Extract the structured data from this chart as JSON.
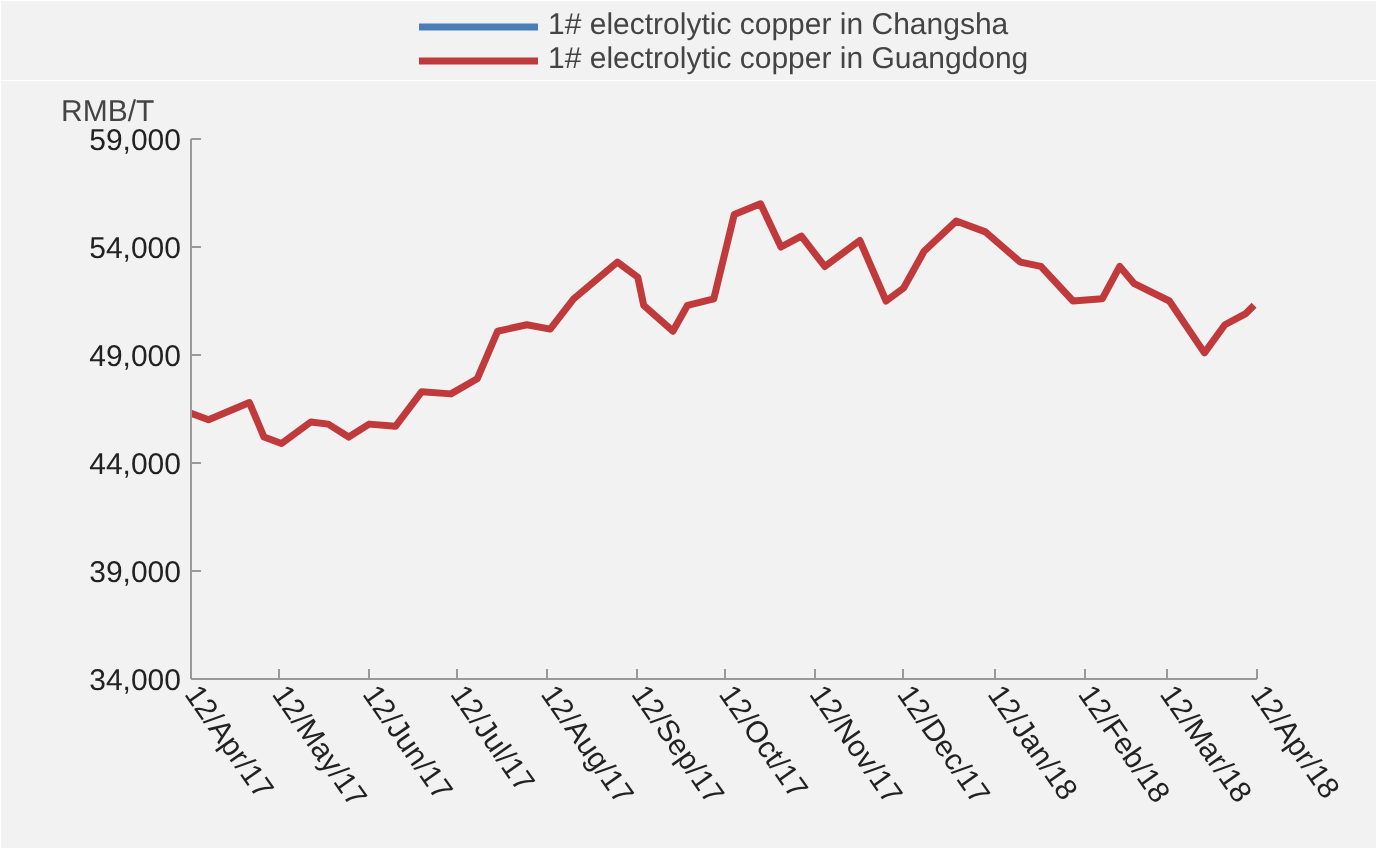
{
  "chart_data": {
    "type": "line",
    "ylabel": "RMB/T",
    "x": [
      "2017-04-12",
      "2017-04-18",
      "2017-05-02",
      "2017-05-07",
      "2017-05-13",
      "2017-05-23",
      "2017-05-29",
      "2017-06-05",
      "2017-06-12",
      "2017-06-21",
      "2017-06-30",
      "2017-07-10",
      "2017-07-19",
      "2017-07-26",
      "2017-08-05",
      "2017-08-13",
      "2017-08-21",
      "2017-09-05",
      "2017-09-12",
      "2017-09-14",
      "2017-09-24",
      "2017-09-29",
      "2017-10-08",
      "2017-10-15",
      "2017-10-24",
      "2017-10-31",
      "2017-11-07",
      "2017-11-15",
      "2017-11-27",
      "2017-12-06",
      "2017-12-12",
      "2017-12-19",
      "2017-12-30",
      "2018-01-09",
      "2018-01-21",
      "2018-01-28",
      "2018-02-08",
      "2018-02-18",
      "2018-02-24",
      "2018-03-01",
      "2018-03-13",
      "2018-03-25",
      "2018-04-01",
      "2018-04-08",
      "2018-04-11"
    ],
    "series": [
      {
        "name": "1# electrolytic copper in Changsha",
        "color": "#4a7ebb",
        "values": [
          null,
          null,
          null,
          null,
          null,
          null,
          null,
          null,
          null,
          null,
          null,
          null,
          null,
          null,
          null,
          null,
          null,
          null,
          null,
          null,
          null,
          null,
          null,
          null,
          null,
          null,
          null,
          null,
          null,
          null,
          null,
          null,
          null,
          null,
          null,
          null,
          null,
          null,
          null,
          null,
          null,
          null,
          null,
          null,
          null
        ]
      },
      {
        "name": "1# electrolytic copper in Guangdong",
        "color": "#c0393b",
        "values": [
          46300,
          46000,
          46800,
          45200,
          44900,
          45900,
          45800,
          45200,
          45800,
          45700,
          47300,
          47200,
          47900,
          50100,
          50400,
          50200,
          51600,
          53300,
          52600,
          51300,
          50100,
          51300,
          51600,
          55500,
          56000,
          54000,
          54500,
          53100,
          54300,
          51500,
          52100,
          53800,
          55200,
          54700,
          53300,
          53100,
          51500,
          51600,
          53100,
          52300,
          51500,
          49100,
          50400,
          50900,
          51300
        ]
      }
    ],
    "xlim": [
      "2017-04-12",
      "2018-04-12"
    ],
    "xticks": [
      {
        "value": "2017-04-12",
        "label": "12/Apr/17"
      },
      {
        "value": "2017-05-12",
        "label": "12/May/17"
      },
      {
        "value": "2017-06-12",
        "label": "12/Jun/17"
      },
      {
        "value": "2017-07-12",
        "label": "12/Jul/17"
      },
      {
        "value": "2017-08-12",
        "label": "12/Aug/17"
      },
      {
        "value": "2017-09-12",
        "label": "12/Sep/17"
      },
      {
        "value": "2017-10-12",
        "label": "12/Oct/17"
      },
      {
        "value": "2017-11-12",
        "label": "12/Nov/17"
      },
      {
        "value": "2017-12-12",
        "label": "12/Dec/17"
      },
      {
        "value": "2018-01-12",
        "label": "12/Jan/18"
      },
      {
        "value": "2018-02-12",
        "label": "12/Feb/18"
      },
      {
        "value": "2018-03-12",
        "label": "12/Mar/18"
      },
      {
        "value": "2018-04-12",
        "label": "12/Apr/18"
      }
    ],
    "ylim": [
      34000,
      59000
    ],
    "yticks": [
      {
        "value": 34000,
        "label": "34,000"
      },
      {
        "value": 39000,
        "label": "39,000"
      },
      {
        "value": 44000,
        "label": "44,000"
      },
      {
        "value": 49000,
        "label": "49,000"
      },
      {
        "value": 54000,
        "label": "54,000"
      },
      {
        "value": 59000,
        "label": "59,000"
      }
    ],
    "grid": false,
    "legend": "top",
    "line_style": "solid",
    "marker": "none"
  }
}
